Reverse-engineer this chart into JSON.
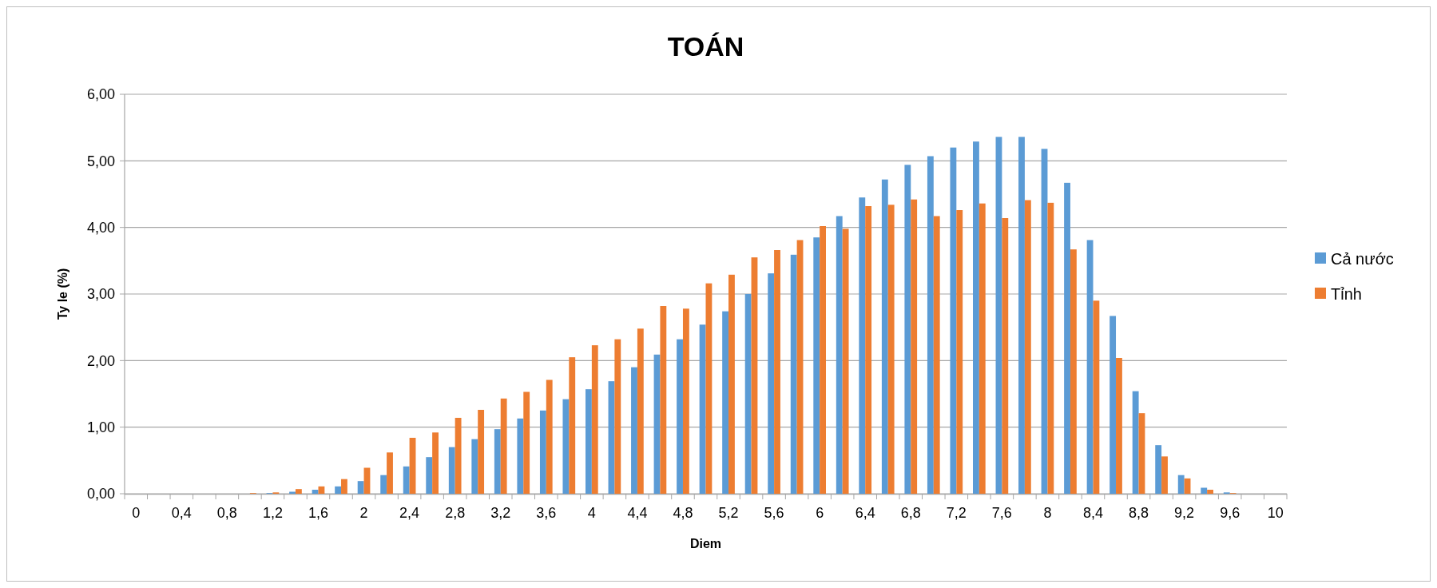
{
  "chart_data": {
    "type": "bar",
    "title": "TOÁN",
    "xlabel": "Diem",
    "ylabel": "Ty le (%)",
    "categories": [
      "0",
      null,
      "0,4",
      null,
      "0,8",
      null,
      "1,2",
      null,
      "1,6",
      null,
      "2",
      null,
      "2,4",
      null,
      "2,8",
      null,
      "3,2",
      null,
      "3,6",
      null,
      "4",
      null,
      "4,4",
      null,
      "4,8",
      null,
      "5,2",
      null,
      "5,6",
      null,
      "6",
      null,
      "6,4",
      null,
      "6,8",
      null,
      "7,2",
      null,
      "7,6",
      null,
      "8",
      null,
      "8,4",
      null,
      "8,8",
      null,
      "9,2",
      null,
      "9,6",
      null,
      "10"
    ],
    "series": [
      {
        "name": "Cả nước",
        "color": "#5b9bd5",
        "values": [
          0,
          0,
          0,
          0,
          0,
          0,
          0.01,
          0.03,
          0.06,
          0.11,
          0.19,
          0.28,
          0.41,
          0.55,
          0.7,
          0.82,
          0.97,
          1.13,
          1.25,
          1.42,
          1.57,
          1.69,
          1.9,
          2.09,
          2.32,
          2.54,
          2.74,
          3.0,
          3.31,
          3.59,
          3.85,
          4.17,
          4.45,
          4.72,
          4.94,
          5.07,
          5.2,
          5.29,
          5.36,
          5.36,
          5.18,
          4.67,
          3.81,
          2.67,
          1.54,
          0.73,
          0.28,
          0.09,
          0.02,
          0,
          0
        ]
      },
      {
        "name": "Tỉnh",
        "color": "#ed7d31",
        "values": [
          0,
          0,
          0,
          0,
          0,
          0.01,
          0.02,
          0.07,
          0.11,
          0.22,
          0.39,
          0.62,
          0.84,
          0.92,
          1.14,
          1.26,
          1.43,
          1.53,
          1.71,
          2.05,
          2.23,
          2.32,
          2.48,
          2.82,
          2.78,
          3.16,
          3.29,
          3.55,
          3.66,
          3.81,
          4.02,
          3.98,
          4.32,
          4.34,
          4.42,
          4.17,
          4.26,
          4.36,
          4.14,
          4.41,
          4.37,
          3.67,
          2.9,
          2.04,
          1.21,
          0.56,
          0.23,
          0.06,
          0.01,
          0,
          0
        ]
      }
    ],
    "ylim": [
      0,
      6
    ],
    "yticks": [
      {
        "value": 0,
        "label": "0,00"
      },
      {
        "value": 1,
        "label": "1,00"
      },
      {
        "value": 2,
        "label": "2,00"
      },
      {
        "value": 3,
        "label": "3,00"
      },
      {
        "value": 4,
        "label": "4,00"
      },
      {
        "value": 5,
        "label": "5,00"
      },
      {
        "value": 6,
        "label": "6,00"
      }
    ],
    "grid": "y",
    "legend": "right"
  }
}
